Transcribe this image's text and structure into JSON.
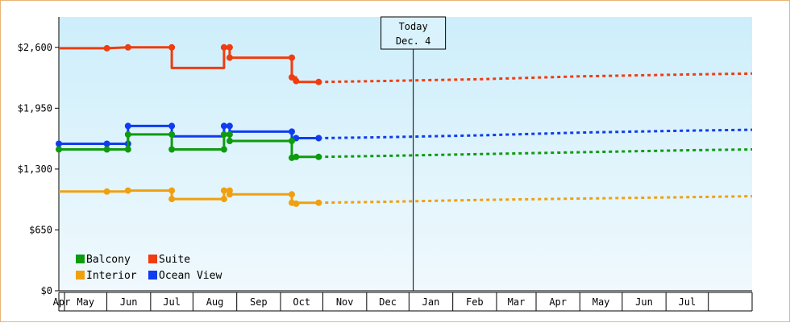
{
  "chart_data": {
    "type": "line",
    "title": "",
    "xlabel": "",
    "ylabel": "",
    "ylim": [
      0,
      2925
    ],
    "y_ticks": [
      {
        "value": 0,
        "label": "$0"
      },
      {
        "value": 650,
        "label": "$650"
      },
      {
        "value": 1300,
        "label": "$1,300"
      },
      {
        "value": 1950,
        "label": "$1,950"
      },
      {
        "value": 2600,
        "label": "$2,600"
      }
    ],
    "x_month_labels": [
      "Apr",
      "May",
      "Jun",
      "Jul",
      "Aug",
      "Sep",
      "Oct",
      "Nov",
      "Dec",
      "Jan",
      "Feb",
      "Mar",
      "Apr",
      "May",
      "Jun",
      "Jul"
    ],
    "x_start_date": "2018-03-28",
    "x_end_date": "2019-08-01",
    "today": {
      "label_line1": "Today",
      "label_line2": "Dec. 4",
      "date": "2018-12-04"
    },
    "grid": false,
    "legend_position": "bottom-left",
    "series": [
      {
        "name": "Suite",
        "color": "#f03c0f",
        "history": [
          [
            "2018-03-28",
            2590
          ],
          [
            "2018-05-01",
            2590
          ],
          [
            "2018-05-16",
            2600
          ],
          [
            "2018-05-31",
            2600
          ],
          [
            "2018-05-31",
            2600
          ],
          [
            "2018-06-16",
            2600
          ],
          [
            "2018-06-16",
            2380
          ],
          [
            "2018-07-23",
            2380
          ],
          [
            "2018-07-23",
            2600
          ],
          [
            "2018-07-27",
            2600
          ],
          [
            "2018-07-27",
            2490
          ],
          [
            "2018-09-09",
            2490
          ],
          [
            "2018-09-09",
            2280
          ],
          [
            "2018-09-12",
            2280
          ],
          [
            "2018-09-12",
            2230
          ],
          [
            "2018-09-28",
            2230
          ]
        ],
        "markers": [
          [
            "2018-05-01",
            2590
          ],
          [
            "2018-05-16",
            2600
          ],
          [
            "2018-06-16",
            2600
          ],
          [
            "2018-07-23",
            2600
          ],
          [
            "2018-07-27",
            2600
          ],
          [
            "2018-07-27",
            2490
          ],
          [
            "2018-09-09",
            2490
          ],
          [
            "2018-09-09",
            2280
          ],
          [
            "2018-09-12",
            2240
          ],
          [
            "2018-09-28",
            2230
          ]
        ],
        "forecast": [
          [
            "2018-09-28",
            2230
          ],
          [
            "2018-11-11",
            2240
          ],
          [
            "2019-01-21",
            2260
          ],
          [
            "2019-04-01",
            2290
          ],
          [
            "2019-06-15",
            2310
          ],
          [
            "2019-08-01",
            2320
          ]
        ]
      },
      {
        "name": "Ocean View",
        "color": "#0f3cf0",
        "history": [
          [
            "2018-03-28",
            1570
          ],
          [
            "2018-05-16",
            1570
          ],
          [
            "2018-05-16",
            1760
          ],
          [
            "2018-06-16",
            1760
          ],
          [
            "2018-06-16",
            1650
          ],
          [
            "2018-07-23",
            1650
          ],
          [
            "2018-07-23",
            1760
          ],
          [
            "2018-07-27",
            1760
          ],
          [
            "2018-07-27",
            1700
          ],
          [
            "2018-09-09",
            1700
          ],
          [
            "2018-09-09",
            1620
          ],
          [
            "2018-09-12",
            1620
          ],
          [
            "2018-09-12",
            1630
          ],
          [
            "2018-09-28",
            1630
          ]
        ],
        "markers": [
          [
            "2018-03-28",
            1570
          ],
          [
            "2018-05-01",
            1570
          ],
          [
            "2018-05-16",
            1570
          ],
          [
            "2018-05-16",
            1760
          ],
          [
            "2018-06-16",
            1760
          ],
          [
            "2018-07-23",
            1760
          ],
          [
            "2018-07-27",
            1760
          ],
          [
            "2018-09-09",
            1700
          ],
          [
            "2018-09-12",
            1630
          ],
          [
            "2018-09-28",
            1630
          ]
        ],
        "forecast": [
          [
            "2018-09-28",
            1630
          ],
          [
            "2018-11-11",
            1640
          ],
          [
            "2019-01-21",
            1660
          ],
          [
            "2019-04-01",
            1690
          ],
          [
            "2019-06-15",
            1710
          ],
          [
            "2019-08-01",
            1720
          ]
        ]
      },
      {
        "name": "Balcony",
        "color": "#0f9b0f",
        "history": [
          [
            "2018-03-28",
            1510
          ],
          [
            "2018-05-16",
            1510
          ],
          [
            "2018-05-16",
            1670
          ],
          [
            "2018-06-16",
            1670
          ],
          [
            "2018-06-16",
            1510
          ],
          [
            "2018-07-23",
            1510
          ],
          [
            "2018-07-23",
            1670
          ],
          [
            "2018-07-27",
            1670
          ],
          [
            "2018-07-27",
            1600
          ],
          [
            "2018-09-09",
            1600
          ],
          [
            "2018-09-09",
            1420
          ],
          [
            "2018-09-12",
            1420
          ],
          [
            "2018-09-12",
            1430
          ],
          [
            "2018-09-28",
            1430
          ]
        ],
        "markers": [
          [
            "2018-03-28",
            1510
          ],
          [
            "2018-05-01",
            1510
          ],
          [
            "2018-05-16",
            1510
          ],
          [
            "2018-05-16",
            1670
          ],
          [
            "2018-06-16",
            1670
          ],
          [
            "2018-06-16",
            1510
          ],
          [
            "2018-07-23",
            1510
          ],
          [
            "2018-07-23",
            1670
          ],
          [
            "2018-07-27",
            1670
          ],
          [
            "2018-07-27",
            1600
          ],
          [
            "2018-09-09",
            1600
          ],
          [
            "2018-09-09",
            1420
          ],
          [
            "2018-09-12",
            1430
          ],
          [
            "2018-09-28",
            1430
          ]
        ],
        "forecast": [
          [
            "2018-09-28",
            1430
          ],
          [
            "2018-11-11",
            1440
          ],
          [
            "2019-01-21",
            1460
          ],
          [
            "2019-04-01",
            1480
          ],
          [
            "2019-06-15",
            1500
          ],
          [
            "2019-08-01",
            1510
          ]
        ]
      },
      {
        "name": "Interior",
        "color": "#f0a00f",
        "history": [
          [
            "2018-03-28",
            1060
          ],
          [
            "2018-05-16",
            1060
          ],
          [
            "2018-05-16",
            1070
          ],
          [
            "2018-06-16",
            1070
          ],
          [
            "2018-06-16",
            980
          ],
          [
            "2018-07-23",
            980
          ],
          [
            "2018-07-23",
            1070
          ],
          [
            "2018-07-27",
            1070
          ],
          [
            "2018-07-27",
            1030
          ],
          [
            "2018-09-09",
            1030
          ],
          [
            "2018-09-09",
            930
          ],
          [
            "2018-09-12",
            930
          ],
          [
            "2018-09-12",
            940
          ],
          [
            "2018-09-28",
            940
          ]
        ],
        "markers": [
          [
            "2018-05-01",
            1060
          ],
          [
            "2018-05-16",
            1070
          ],
          [
            "2018-06-16",
            1070
          ],
          [
            "2018-06-16",
            980
          ],
          [
            "2018-07-23",
            980
          ],
          [
            "2018-07-23",
            1070
          ],
          [
            "2018-07-27",
            1070
          ],
          [
            "2018-07-27",
            1030
          ],
          [
            "2018-09-09",
            1030
          ],
          [
            "2018-09-09",
            940
          ],
          [
            "2018-09-12",
            930
          ],
          [
            "2018-09-28",
            940
          ]
        ],
        "forecast": [
          [
            "2018-09-28",
            940
          ],
          [
            "2018-11-11",
            950
          ],
          [
            "2019-01-21",
            970
          ],
          [
            "2019-04-01",
            985
          ],
          [
            "2019-06-15",
            1000
          ],
          [
            "2019-08-01",
            1010
          ]
        ]
      }
    ],
    "legend": [
      {
        "name": "Balcony",
        "color": "#0f9b0f"
      },
      {
        "name": "Suite",
        "color": "#f03c0f"
      },
      {
        "name": "Interior",
        "color": "#f0a00f"
      },
      {
        "name": "Ocean View",
        "color": "#0f3cf0"
      }
    ]
  }
}
